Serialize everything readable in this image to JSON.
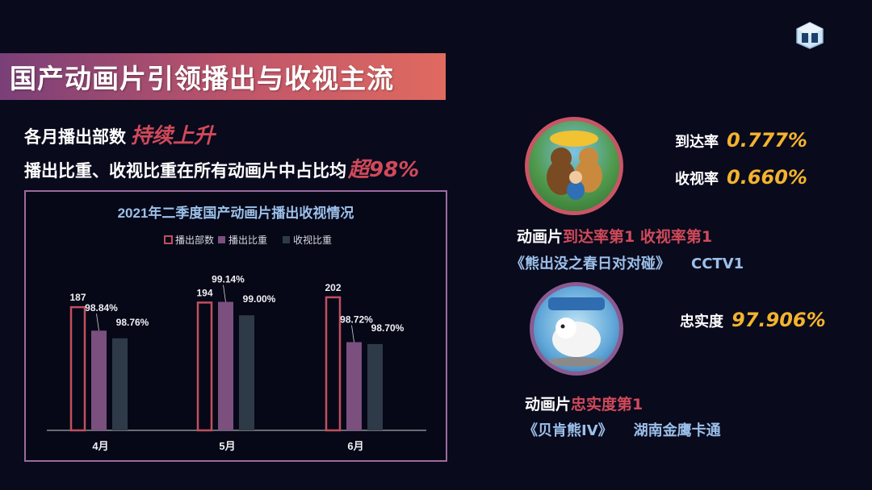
{
  "title": "国产动画片引领播出与收视主流",
  "headline": {
    "line1_text": "各月播出部数",
    "line1_highlight": "持续上升",
    "line2_text": "播出比重、收视比重在所有动画片中占比均",
    "line2_highlight": "超98%"
  },
  "chart_data": {
    "type": "bar",
    "title": "2021年二季度国产动画片播出收视情况",
    "categories": [
      "4月",
      "5月",
      "6月"
    ],
    "series": [
      {
        "name": "播出部数",
        "values": [
          187,
          194,
          202
        ],
        "labels": [
          "187",
          "194",
          "202"
        ]
      },
      {
        "name": "播出比重",
        "values": [
          98.84,
          99.14,
          98.72
        ],
        "labels": [
          "98.84%",
          "99.14%",
          "98.72%"
        ]
      },
      {
        "name": "收视比重",
        "values": [
          98.76,
          99.0,
          98.7
        ],
        "labels": [
          "98.76%",
          "99.00%",
          "98.70%"
        ]
      }
    ],
    "legend_position": "top",
    "grid": false,
    "colors": {
      "播出部数": "#c24f5e",
      "播出比重": "#7b4f7e",
      "收视比重": "#2f3a48"
    }
  },
  "programs": [
    {
      "stats": [
        {
          "label": "到达率",
          "value": "0.777%"
        },
        {
          "label": "收视率",
          "value": "0.660%"
        }
      ],
      "rank_prefix": "动画片",
      "rank_highlight": "到达率第1 收视率第1",
      "name": "《熊出没之春日对对碰》",
      "channel": "CCTV1"
    },
    {
      "stats": [
        {
          "label": "忠实度",
          "value": "97.906%"
        }
      ],
      "rank_prefix": "动画片",
      "rank_highlight": "忠实度第1",
      "name": "《贝肯熊IV》",
      "channel": "湖南金鹰卡通"
    }
  ],
  "colors": {
    "accent_red": "#d04a5a",
    "accent_gold": "#f4b32e",
    "program_blue": "#9cc0ea"
  }
}
